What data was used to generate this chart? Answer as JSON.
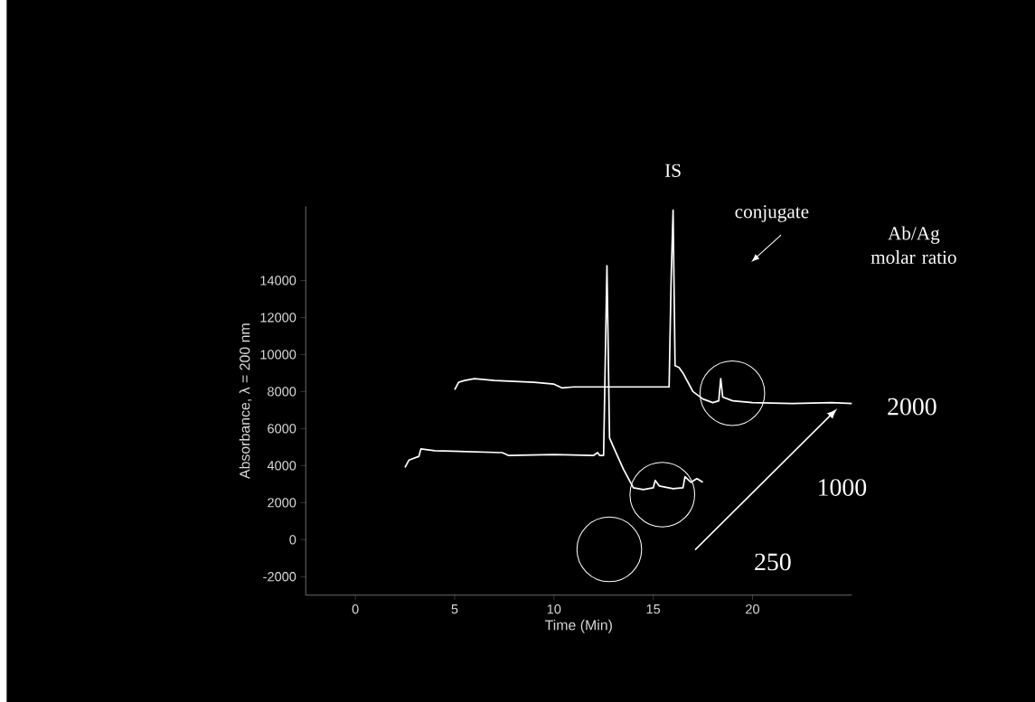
{
  "chart_data": {
    "type": "line",
    "xlabel": "Time (Min)",
    "ylabel": "Absorbance, λ = 200 nm",
    "xlim": [
      -2.5,
      25
    ],
    "ylim": [
      -3000,
      18000
    ],
    "xticks": [
      0,
      5,
      10,
      15,
      20
    ],
    "yticks": [
      -2000,
      0,
      2000,
      4000,
      6000,
      8000,
      10000,
      12000,
      14000
    ],
    "series": [
      {
        "name": "2000",
        "color": "#ffffff",
        "x": [
          5.0,
          5.2,
          5.5,
          6,
          7,
          9,
          10,
          10.4,
          11,
          13,
          15.8,
          15.9,
          16.0,
          16.1,
          16.3,
          16.5,
          17.0,
          17.5,
          18.0,
          18.3,
          18.4,
          18.5,
          19,
          20,
          22,
          24,
          25
        ],
        "values": [
          8100,
          8500,
          8600,
          8700,
          8600,
          8500,
          8400,
          8200,
          8250,
          8250,
          8250,
          14000,
          17800,
          9400,
          9300,
          9000,
          8000,
          7600,
          7400,
          7500,
          8700,
          7700,
          7500,
          7400,
          7350,
          7400,
          7350
        ]
      },
      {
        "name": "1000",
        "color": "#ffffff",
        "x": [
          2.5,
          2.7,
          3.2,
          3.3,
          4,
          7.4,
          7.7,
          10,
          12.0,
          12.2,
          12.3,
          12.5,
          12.67,
          12.8,
          13,
          13.5,
          14,
          14.5,
          15,
          15.1,
          15.3,
          16,
          16.5,
          16.6,
          16.9,
          17.2,
          17.5
        ],
        "values": [
          3900,
          4300,
          4500,
          4900,
          4800,
          4700,
          4550,
          4600,
          4550,
          4700,
          4550,
          4550,
          14800,
          5500,
          5000,
          3800,
          2800,
          2700,
          2800,
          3200,
          2900,
          2750,
          2800,
          3400,
          3100,
          3300,
          3100
        ]
      }
    ],
    "annotations": [
      "IS",
      "conjugate",
      "Ab/Ag molar ratio",
      "250"
    ]
  }
}
